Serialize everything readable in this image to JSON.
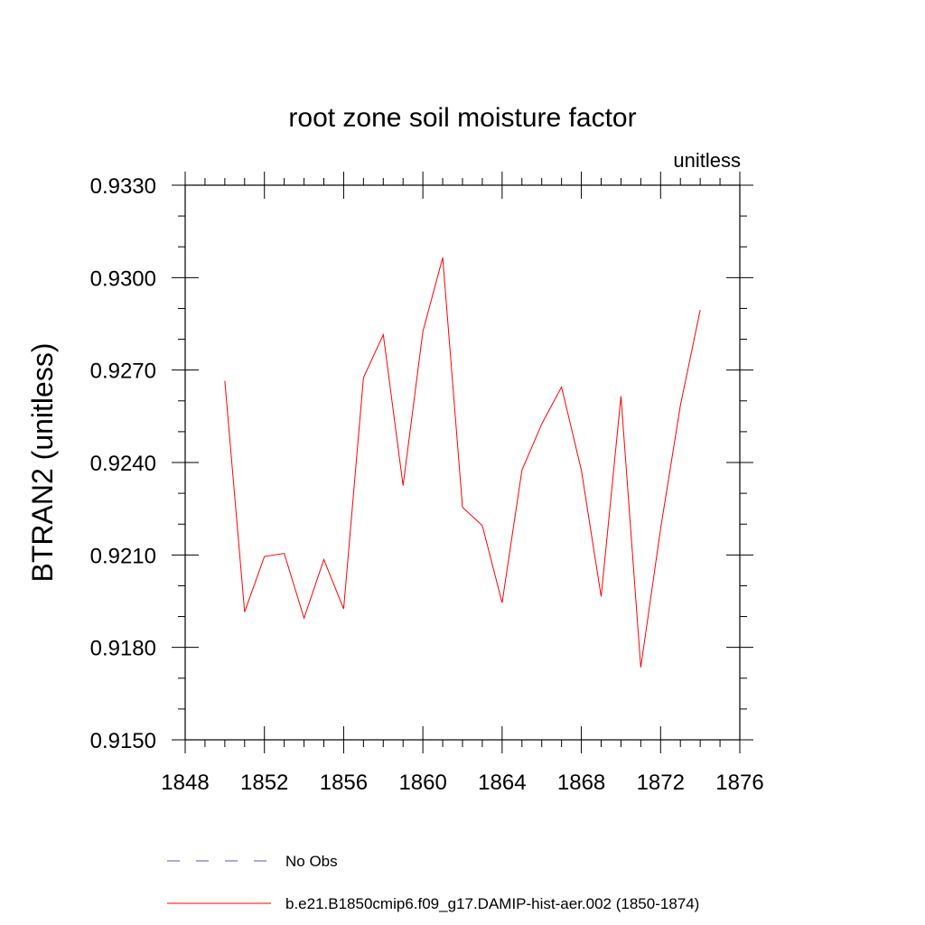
{
  "chart_data": {
    "type": "line",
    "title": "root zone soil moisture factor",
    "units_label": "unitless",
    "ylabel": "BTRAN2  (unitless)",
    "xlabel": "",
    "xlim": [
      1848,
      1876
    ],
    "ylim": [
      0.915,
      0.933
    ],
    "x_major_ticks": [
      1848,
      1852,
      1856,
      1860,
      1864,
      1868,
      1872,
      1876
    ],
    "x_tick_labels": [
      "1848",
      "1852",
      "1856",
      "1860",
      "1864",
      "1868",
      "1872",
      "1876"
    ],
    "x_minor_ticks": [
      1849,
      1850,
      1851,
      1853,
      1854,
      1855,
      1857,
      1858,
      1859,
      1861,
      1862,
      1863,
      1865,
      1866,
      1867,
      1869,
      1870,
      1871,
      1873,
      1874,
      1875
    ],
    "y_major_ticks": [
      0.915,
      0.918,
      0.921,
      0.924,
      0.927,
      0.93,
      0.933
    ],
    "y_tick_labels": [
      "0.9150",
      "0.9180",
      "0.9210",
      "0.9240",
      "0.9270",
      "0.9300",
      "0.9330"
    ],
    "y_minor_ticks": [
      0.916,
      0.917,
      0.919,
      0.92,
      0.922,
      0.923,
      0.925,
      0.926,
      0.928,
      0.929,
      0.931,
      0.932
    ],
    "grid": false,
    "legend_placement": "bottom",
    "series": [
      {
        "name": "b.e21.B1850cmip6.f09_g17.DAMIP-hist-aer.002 (1850-1874)",
        "color": "#ff0000",
        "dash": "solid",
        "x": [
          1850,
          1851,
          1852,
          1853,
          1854,
          1855,
          1856,
          1857,
          1858,
          1859,
          1860,
          1861,
          1862,
          1863,
          1864,
          1865,
          1866,
          1867,
          1868,
          1869,
          1870,
          1871,
          1872,
          1873,
          1874
        ],
        "y": [
          0.92665,
          0.91915,
          0.92095,
          0.92105,
          0.91895,
          0.92085,
          0.91925,
          0.92675,
          0.92815,
          0.92325,
          0.92825,
          0.93065,
          0.92255,
          0.92195,
          0.91945,
          0.92375,
          0.92525,
          0.92645,
          0.92375,
          0.91965,
          0.92615,
          0.91735,
          0.92185,
          0.92585,
          0.92895
        ]
      }
    ],
    "legend": [
      {
        "label": "No Obs",
        "color": "#5555cc",
        "dash": "dashed"
      },
      {
        "label": "b.e21.B1850cmip6.f09_g17.DAMIP-hist-aer.002 (1850-1874)",
        "color": "#ff0000",
        "dash": "solid"
      }
    ]
  }
}
